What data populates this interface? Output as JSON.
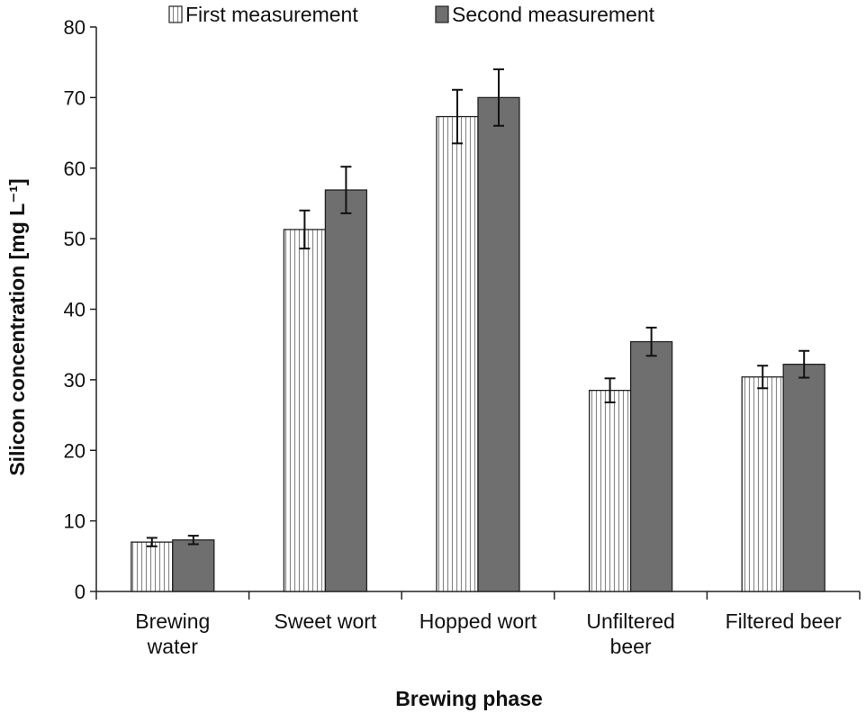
{
  "chart_data": {
    "type": "bar",
    "categories": [
      [
        "Brewing",
        "water"
      ],
      [
        "Sweet wort"
      ],
      [
        "Hopped wort"
      ],
      [
        "Unfiltered",
        "beer"
      ],
      [
        "Filtered beer"
      ]
    ],
    "series": [
      {
        "name": "First measurement",
        "values": [
          7.0,
          51.3,
          67.3,
          28.5,
          30.4
        ],
        "errors": [
          0.6,
          2.7,
          3.8,
          1.7,
          1.6
        ],
        "fill": "#ffffff",
        "stripe_color": "#8a8a8a",
        "pattern": "vertical-stripes"
      },
      {
        "name": "Second measurement",
        "values": [
          7.3,
          56.9,
          70.0,
          35.4,
          32.2
        ],
        "errors": [
          0.6,
          3.3,
          4.0,
          2.0,
          1.9
        ],
        "fill": "#6f6f6f",
        "pattern": "solid"
      }
    ],
    "xlabel": "Brewing phase",
    "ylabel": "Silicon concentration  [mg L⁻¹]",
    "ylim": [
      0,
      80
    ],
    "yticks": [
      0,
      10,
      20,
      30,
      40,
      50,
      60,
      70,
      80
    ],
    "grid": false,
    "legend_position": "top"
  }
}
